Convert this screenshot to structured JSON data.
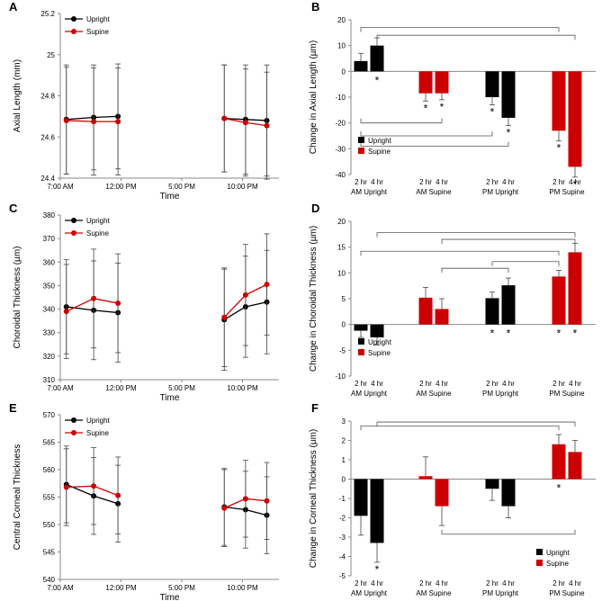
{
  "colors": {
    "upright": "#000000",
    "supine": "#cc0000",
    "axis": "#888888",
    "error": "#444444"
  },
  "chart_data": [
    {
      "id": "A",
      "type": "line",
      "panel_letter": "A",
      "xlabel": "Time",
      "ylabel": "Axial Length (mm)",
      "xticks": [
        7,
        12,
        17,
        22
      ],
      "xtick_labels": [
        "7:00 AM",
        "12:00 PM",
        "5:00 PM",
        "10:00 PM"
      ],
      "xlim": [
        7,
        25
      ],
      "yticks": [
        24.4,
        24.6,
        24.8,
        25,
        25.2
      ],
      "ytick_labels": [
        "24.4",
        "24.6",
        "24.8",
        "25",
        "25.2"
      ],
      "ylim": [
        24.4,
        25.2
      ],
      "legend": [
        "Upright",
        "Supine"
      ],
      "segments": [
        [
          0,
          1,
          2
        ],
        [
          3,
          4,
          5
        ]
      ],
      "series": [
        {
          "name": "Upright",
          "x": [
            7.5,
            9.75,
            11.75,
            20.5,
            22.25,
            24
          ],
          "values": [
            24.685,
            24.695,
            24.7,
            24.69,
            24.685,
            24.68
          ],
          "err": [
            0.265,
            0.255,
            0.255,
            0.26,
            0.265,
            0.27
          ]
        },
        {
          "name": "Supine",
          "x": [
            7.5,
            9.75,
            11.75,
            20.5,
            22.25,
            24
          ],
          "values": [
            24.68,
            24.675,
            24.675,
            24.69,
            24.67,
            24.655
          ],
          "err": [
            0.26,
            0.26,
            0.26,
            0.26,
            0.26,
            0.26
          ]
        }
      ]
    },
    {
      "id": "B",
      "type": "bar",
      "panel_letter": "B",
      "ylabel": "Change in Axial Length (µm)",
      "ylim": [
        -40,
        20
      ],
      "yticks": [
        -40,
        -30,
        -20,
        -10,
        0,
        10,
        20
      ],
      "ytick_labels": [
        "-40",
        "-30",
        "-20",
        "-10",
        "0",
        "10",
        "20"
      ],
      "bar_hour_labels": [
        "2 hr",
        "4 hr",
        "2 hr",
        "4 hr",
        "2 hr",
        "4 hr",
        "2 hr",
        "4 hr"
      ],
      "group_labels": [
        "AM Upright",
        "AM Supine",
        "PM Upright",
        "PM Supine"
      ],
      "legend": [
        "Upright",
        "Supine"
      ],
      "legend_pos": "lower-left",
      "bars": [
        {
          "label": "AM Upright 2 hr",
          "value": 4,
          "err": 3,
          "series": "upright",
          "star": false
        },
        {
          "label": "AM Upright 4 hr",
          "value": 10,
          "err": 3,
          "series": "upright",
          "star": true
        },
        {
          "label": "AM Supine 2 hr",
          "value": -8.5,
          "err": 3,
          "series": "supine",
          "star": true
        },
        {
          "label": "AM Supine 4 hr",
          "value": -8.5,
          "err": 2.5,
          "series": "supine",
          "star": true
        },
        {
          "label": "PM Upright 2 hr",
          "value": -10,
          "err": 3,
          "series": "upright",
          "star": true
        },
        {
          "label": "PM Upright 4 hr",
          "value": -18,
          "err": 3,
          "series": "upright",
          "star": true
        },
        {
          "label": "PM Supine 2 hr",
          "value": -23,
          "err": 4,
          "series": "supine",
          "star": true
        },
        {
          "label": "PM Supine 4 hr",
          "value": -37,
          "err": 4,
          "series": "supine",
          "star": true
        }
      ],
      "brackets": [
        {
          "from": 0,
          "to": 6,
          "y": 17,
          "dir": "down"
        },
        {
          "from": 1,
          "to": 7,
          "y": 14,
          "dir": "down"
        },
        {
          "from": 0,
          "to": 3,
          "y": -20,
          "dir": "up"
        },
        {
          "from": 0,
          "to": 4,
          "y": -25,
          "dir": "up"
        },
        {
          "from": 0,
          "to": 5,
          "y": -29,
          "dir": "up"
        }
      ]
    },
    {
      "id": "C",
      "type": "line",
      "panel_letter": "C",
      "xlabel": "Time",
      "ylabel": "Choroidal Thickness (µm)",
      "xticks": [
        7,
        12,
        17,
        22
      ],
      "xtick_labels": [
        "7:00 AM",
        "12:00 PM",
        "5:00 PM",
        "10:00 PM"
      ],
      "xlim": [
        7,
        25
      ],
      "yticks": [
        310,
        320,
        330,
        340,
        350,
        360,
        370,
        380
      ],
      "ytick_labels": [
        "310",
        "320",
        "330",
        "340",
        "350",
        "360",
        "370",
        "380"
      ],
      "ylim": [
        310,
        380
      ],
      "legend": [
        "Upright",
        "Supine"
      ],
      "segments": [
        [
          0,
          1,
          2
        ],
        [
          3,
          4,
          5
        ]
      ],
      "series": [
        {
          "name": "Upright",
          "x": [
            7.5,
            9.75,
            11.75,
            20.5,
            22.25,
            24
          ],
          "values": [
            341,
            339.5,
            338.5,
            335.5,
            341,
            343
          ],
          "err": [
            20,
            21,
            21,
            21.5,
            21.5,
            22
          ]
        },
        {
          "name": "Supine",
          "x": [
            7.5,
            9.75,
            11.75,
            20.5,
            22.25,
            24
          ],
          "values": [
            339,
            344.5,
            342.5,
            336.5,
            346,
            350.5
          ],
          "err": [
            20,
            21,
            21,
            21,
            21.5,
            21.5
          ]
        }
      ]
    },
    {
      "id": "D",
      "type": "bar",
      "panel_letter": "D",
      "ylabel": "Change in Choroidal Thickness (µm)",
      "ylim": [
        -10,
        20
      ],
      "yticks": [
        -10,
        -5,
        0,
        5,
        10,
        15,
        20
      ],
      "ytick_labels": [
        "-10",
        "-5",
        "0",
        "5",
        "10",
        "15",
        "20"
      ],
      "bar_hour_labels": [
        "2 hr",
        "4 hr",
        "2 hr",
        "4 hr",
        "2 hr",
        "4 hr",
        "2 hr",
        "4 hr"
      ],
      "group_labels": [
        "AM Upright",
        "AM Supine",
        "PM Upright",
        "PM Supine"
      ],
      "legend": [
        "Upright",
        "Supine"
      ],
      "legend_pos": "lower-left",
      "bars": [
        {
          "label": "AM Upright 2 hr",
          "value": -1.2,
          "err": 1.3,
          "series": "upright",
          "star": false
        },
        {
          "label": "AM Upright 4 hr",
          "value": -2.5,
          "err": 1.5,
          "series": "upright",
          "star": false
        },
        {
          "label": "AM Supine 2 hr",
          "value": 5.2,
          "err": 2,
          "series": "supine",
          "star": false
        },
        {
          "label": "AM Supine 4 hr",
          "value": 3,
          "err": 2,
          "series": "supine",
          "star": false
        },
        {
          "label": "PM Upright 2 hr",
          "value": 5.1,
          "err": 1.2,
          "series": "upright",
          "star": true
        },
        {
          "label": "PM Upright 4 hr",
          "value": 7.6,
          "err": 1.4,
          "series": "upright",
          "star": true
        },
        {
          "label": "PM Supine 2 hr",
          "value": 9.3,
          "err": 1.2,
          "series": "supine",
          "star": true
        },
        {
          "label": "PM Supine 4 hr",
          "value": 14,
          "err": 1.7,
          "series": "supine",
          "star": true
        }
      ],
      "brackets": [
        {
          "from": 1,
          "to": 7,
          "y": 17.8,
          "dir": "down"
        },
        {
          "from": 3,
          "to": 7,
          "y": 16.5,
          "dir": "down"
        },
        {
          "from": 0,
          "to": 6,
          "y": 14.2,
          "dir": "down"
        },
        {
          "from": 4,
          "to": 6,
          "y": 12.2,
          "dir": "down"
        },
        {
          "from": 3,
          "to": 5,
          "y": 10.9,
          "dir": "down"
        }
      ]
    },
    {
      "id": "E",
      "type": "line",
      "panel_letter": "E",
      "xlabel": "Time",
      "ylabel": "Central Corneal Thickness",
      "xticks": [
        7,
        12,
        17,
        22
      ],
      "xtick_labels": [
        "7:00 AM",
        "12:00 PM",
        "5:00 PM",
        "10:00 PM"
      ],
      "xlim": [
        7,
        25
      ],
      "yticks": [
        540,
        545,
        550,
        555,
        560,
        565,
        570
      ],
      "ytick_labels": [
        "540",
        "545",
        "550",
        "555",
        "560",
        "565",
        "570"
      ],
      "ylim": [
        540,
        570
      ],
      "legend": [
        "Upright",
        "Supine"
      ],
      "segments": [
        [
          0,
          1,
          2
        ],
        [
          3,
          4,
          5
        ]
      ],
      "series": [
        {
          "name": "Upright",
          "x": [
            7.5,
            9.75,
            11.75,
            20.5,
            22.25,
            24
          ],
          "values": [
            557.3,
            555.2,
            553.8,
            553.2,
            552.7,
            551.7
          ],
          "err": [
            7,
            7,
            7,
            7,
            7,
            7
          ]
        },
        {
          "name": "Supine",
          "x": [
            7.5,
            9.75,
            11.75,
            20.5,
            22.25,
            24
          ],
          "values": [
            556.8,
            557,
            555.3,
            553,
            554.7,
            554.3
          ],
          "err": [
            7,
            7,
            7,
            7,
            7,
            7
          ]
        }
      ]
    },
    {
      "id": "F",
      "type": "bar",
      "panel_letter": "F",
      "ylabel": "Change in Corneal Thickness (µm)",
      "ylim": [
        -5,
        3
      ],
      "yticks": [
        -5,
        -4,
        -3,
        -2,
        -1,
        0,
        1,
        2,
        3
      ],
      "ytick_labels": [
        "-5",
        "-4",
        "-3",
        "-2",
        "-1",
        "0",
        "1",
        "2",
        "3"
      ],
      "bar_hour_labels": [
        "2 hr",
        "4 hr",
        "2 hr",
        "4 hr",
        "2 hr",
        "4 hr",
        "2 hr",
        "4 hr"
      ],
      "group_labels": [
        "AM Upright",
        "AM Supine",
        "PM Upright",
        "PM Supine"
      ],
      "legend": [
        "Upright",
        "Supine"
      ],
      "legend_pos": "lower-right",
      "bars": [
        {
          "label": "AM Upright 2 hr",
          "value": -1.9,
          "err": 1,
          "series": "upright",
          "star": false
        },
        {
          "label": "AM Upright 4 hr",
          "value": -3.3,
          "err": 1,
          "series": "upright",
          "star": true
        },
        {
          "label": "AM Supine 2 hr",
          "value": 0.15,
          "err": 1,
          "series": "supine",
          "star": false
        },
        {
          "label": "AM Supine 4 hr",
          "value": -1.4,
          "err": 1,
          "series": "supine",
          "star": false
        },
        {
          "label": "PM Upright 2 hr",
          "value": -0.5,
          "err": 0.6,
          "series": "upright",
          "star": false
        },
        {
          "label": "PM Upright 4 hr",
          "value": -1.4,
          "err": 0.6,
          "series": "upright",
          "star": false
        },
        {
          "label": "PM Supine 2 hr",
          "value": 1.8,
          "err": 0.5,
          "series": "supine",
          "star": true
        },
        {
          "label": "PM Supine 4 hr",
          "value": 1.4,
          "err": 0.6,
          "series": "supine",
          "star": false
        }
      ],
      "brackets": [
        {
          "from": 0,
          "to": 6,
          "y": 2.75,
          "dir": "down"
        },
        {
          "from": 1,
          "to": 7,
          "y": 2.95,
          "dir": "down"
        },
        {
          "from": 3,
          "to": 7,
          "y": -2.85,
          "dir": "up"
        }
      ]
    }
  ]
}
